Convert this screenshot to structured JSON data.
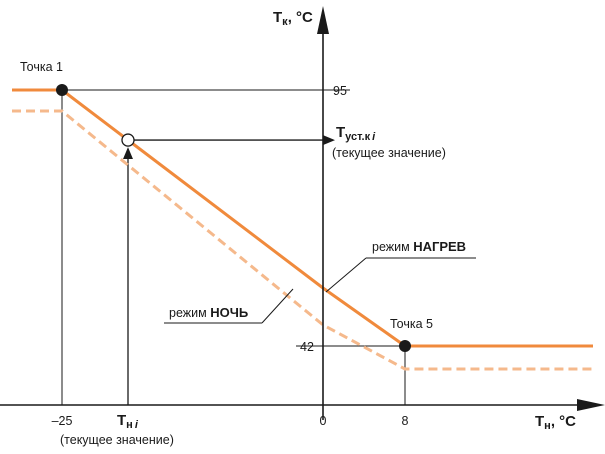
{
  "chart_data": {
    "type": "line",
    "xlabel": "Tн, °C",
    "ylabel": "Tк, °C",
    "xlabel_main": "T",
    "xlabel_sub": "н",
    "xlabel_unit": ", °C",
    "ylabel_main": "T",
    "ylabel_sub": "к",
    "ylabel_unit": ", °C",
    "x_ticks": [
      "–25",
      "0",
      "8"
    ],
    "y_ticks": [
      "42",
      "95"
    ],
    "grid": false,
    "series": [
      {
        "name": "режим НАГРЕВ",
        "color": "#f08a3c",
        "style": "solid",
        "points": [
          [
            -37,
            95
          ],
          [
            -25,
            95
          ],
          [
            0,
            53
          ],
          [
            8,
            42
          ],
          [
            29,
            42
          ]
        ]
      },
      {
        "name": "режим НОЧЬ",
        "color": "#f5b98c",
        "style": "dashed",
        "points": [
          [
            -37,
            88
          ],
          [
            -25,
            88
          ],
          [
            0,
            46
          ],
          [
            8,
            35
          ],
          [
            29,
            35
          ]
        ]
      }
    ],
    "annotations": {
      "point1": "Точка 1",
      "point5": "Точка 5",
      "mode_heat_prefix": "режим ",
      "mode_heat_bold": "НАГРЕВ",
      "mode_night_prefix": "режим ",
      "mode_night_bold": "НОЧЬ",
      "tset_main": "T",
      "tset_sub": "уст.к",
      "tset_italic": "i",
      "tset_note": "(текущее значение)",
      "tn_main": "T",
      "tn_sub": "н",
      "tn_italic": "i",
      "tn_note": "(текущее значение)"
    }
  }
}
